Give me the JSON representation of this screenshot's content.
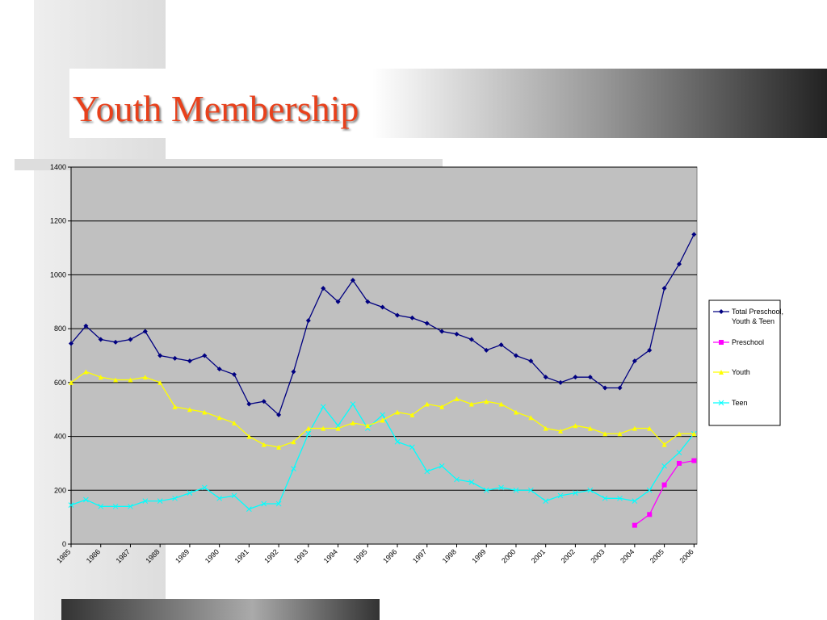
{
  "chart_data": {
    "type": "line",
    "title": "Youth Membership",
    "x": [
      1985,
      1985.5,
      1986,
      1986.5,
      1987,
      1987.5,
      1988,
      1988.5,
      1989,
      1989.5,
      1990,
      1990.5,
      1991,
      1991.5,
      1992,
      1992.5,
      1993,
      1993.5,
      1994,
      1994.5,
      1995,
      1995.5,
      1996,
      1996.5,
      1997,
      1997.5,
      1998,
      1998.5,
      1999,
      1999.5,
      2000,
      2000.5,
      2001,
      2001.5,
      2002,
      2002.5,
      2003,
      2003.5,
      2004,
      2004.5,
      2005,
      2005.5,
      2006
    ],
    "xlim": [
      1985,
      2006.1
    ],
    "xticks": [
      1985,
      1986,
      1987,
      1988,
      1989,
      1990,
      1991,
      1992,
      1993,
      1994,
      1995,
      1996,
      1997,
      1998,
      1999,
      2000,
      2001,
      2002,
      2003,
      2004,
      2005,
      2006
    ],
    "ylim": [
      0,
      1400
    ],
    "yticks": [
      0,
      200,
      400,
      600,
      800,
      1000,
      1200,
      1400
    ],
    "grid": true,
    "legend": "right",
    "series": [
      {
        "name": "Total Preschool, Youth & Teen",
        "color": "#000080",
        "marker": "diamond",
        "values": [
          745,
          810,
          760,
          750,
          760,
          790,
          700,
          690,
          680,
          700,
          650,
          630,
          520,
          530,
          480,
          640,
          830,
          950,
          900,
          980,
          900,
          880,
          850,
          840,
          820,
          790,
          780,
          760,
          720,
          740,
          700,
          680,
          620,
          600,
          620,
          620,
          580,
          580,
          680,
          720,
          950,
          1040,
          1150
        ]
      },
      {
        "name": "Preschool",
        "color": "#ff00ff",
        "marker": "square",
        "values": [
          null,
          null,
          null,
          null,
          null,
          null,
          null,
          null,
          null,
          null,
          null,
          null,
          null,
          null,
          null,
          null,
          null,
          null,
          null,
          null,
          null,
          null,
          null,
          null,
          null,
          null,
          null,
          null,
          null,
          null,
          null,
          null,
          null,
          null,
          null,
          null,
          null,
          null,
          70,
          110,
          220,
          300,
          310
        ]
      },
      {
        "name": "Youth",
        "color": "#ffff00",
        "marker": "triangle",
        "values": [
          600,
          640,
          620,
          610,
          610,
          620,
          600,
          510,
          500,
          490,
          470,
          450,
          400,
          370,
          360,
          380,
          430,
          430,
          430,
          450,
          440,
          460,
          490,
          480,
          520,
          510,
          540,
          520,
          530,
          520,
          490,
          470,
          430,
          420,
          440,
          430,
          410,
          410,
          430,
          430,
          370,
          410,
          410
        ]
      },
      {
        "name": "Teen",
        "color": "#00ffff",
        "marker": "x",
        "values": [
          145,
          165,
          140,
          140,
          140,
          160,
          160,
          170,
          190,
          210,
          170,
          180,
          130,
          150,
          150,
          280,
          410,
          510,
          440,
          520,
          430,
          480,
          380,
          360,
          270,
          290,
          240,
          230,
          200,
          210,
          200,
          200,
          160,
          180,
          190,
          200,
          170,
          170,
          160,
          200,
          290,
          340,
          410
        ]
      }
    ]
  }
}
